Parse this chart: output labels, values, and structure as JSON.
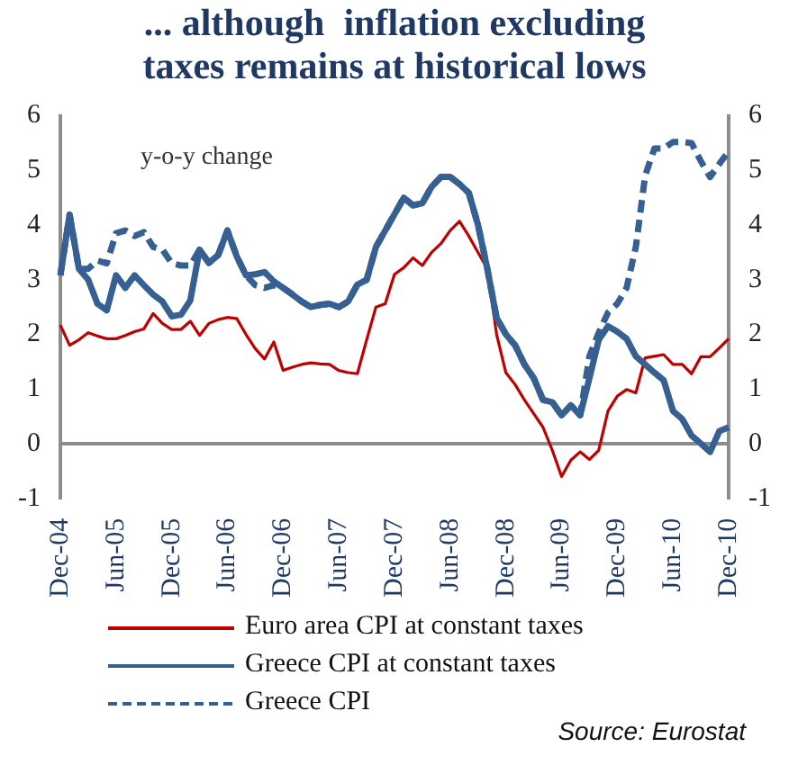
{
  "chart_data": {
    "type": "line",
    "title": "... although  inflation excluding\ntaxes remains at historical lows",
    "categories": [
      "Dec-04",
      null,
      null,
      null,
      null,
      null,
      "Jun-05",
      null,
      null,
      null,
      null,
      null,
      "Dec-05",
      null,
      null,
      null,
      null,
      null,
      "Jun-06",
      null,
      null,
      null,
      null,
      null,
      "Dec-06",
      null,
      null,
      null,
      null,
      null,
      "Jun-07",
      null,
      null,
      null,
      null,
      null,
      "Dec-07",
      null,
      null,
      null,
      null,
      null,
      "Jun-08",
      null,
      null,
      null,
      null,
      null,
      "Dec-08",
      null,
      null,
      null,
      null,
      null,
      "Jun-09",
      null,
      null,
      null,
      null,
      null,
      "Dec-09",
      null,
      null,
      null,
      null,
      null,
      "Jun-10",
      null,
      null,
      null,
      null,
      null,
      "Dec-10"
    ],
    "series": [
      {
        "name": "Euro area CPI at constant taxes",
        "color": "#c00000",
        "line_style": "solid",
        "values": [
          2.17,
          1.8,
          1.9,
          2.03,
          1.97,
          1.92,
          1.92,
          1.98,
          2.05,
          2.1,
          2.38,
          2.2,
          2.09,
          2.09,
          2.24,
          1.98,
          2.2,
          2.27,
          2.31,
          2.29,
          2.0,
          1.74,
          1.55,
          1.86,
          1.34,
          1.4,
          1.45,
          1.48,
          1.46,
          1.45,
          1.34,
          1.3,
          1.28,
          1.9,
          2.5,
          2.56,
          3.1,
          3.22,
          3.4,
          3.26,
          3.5,
          3.66,
          3.9,
          4.07,
          3.8,
          3.5,
          3.2,
          2.0,
          1.3,
          1.08,
          0.8,
          0.55,
          0.3,
          -0.12,
          -0.6,
          -0.3,
          -0.15,
          -0.29,
          -0.12,
          0.6,
          0.87,
          0.99,
          0.93,
          1.57,
          1.6,
          1.63,
          1.45,
          1.45,
          1.28,
          1.59,
          1.59,
          1.75,
          1.92
        ]
      },
      {
        "name": "Greece CPI at constant taxes",
        "color": "#376092",
        "line_style": "solid",
        "values": [
          3.08,
          4.19,
          3.2,
          3.0,
          2.56,
          2.44,
          3.08,
          2.85,
          3.08,
          2.9,
          2.73,
          2.6,
          2.33,
          2.36,
          2.62,
          3.55,
          3.31,
          3.45,
          3.9,
          3.43,
          3.08,
          3.1,
          3.14,
          2.97,
          2.85,
          2.73,
          2.6,
          2.5,
          2.54,
          2.56,
          2.5,
          2.6,
          2.91,
          3.0,
          3.6,
          3.9,
          4.2,
          4.5,
          4.36,
          4.4,
          4.7,
          4.88,
          4.88,
          4.75,
          4.59,
          4.0,
          3.2,
          2.3,
          2.0,
          1.8,
          1.45,
          1.2,
          0.8,
          0.76,
          0.52,
          0.7,
          0.52,
          1.2,
          1.9,
          2.15,
          2.05,
          1.92,
          1.6,
          1.45,
          1.3,
          1.16,
          0.6,
          0.45,
          0.15,
          0.0,
          -0.15,
          0.23,
          0.3
        ]
      },
      {
        "name": "Greece CPI",
        "color": "#376092",
        "line_style": "dashed",
        "values": [
          3.08,
          4.19,
          3.2,
          3.2,
          3.35,
          3.3,
          3.85,
          3.9,
          3.8,
          3.87,
          3.6,
          3.55,
          3.3,
          3.26,
          3.26,
          3.55,
          3.31,
          3.45,
          3.9,
          3.43,
          3.08,
          2.9,
          2.85,
          2.9,
          2.85,
          2.73,
          2.6,
          2.5,
          2.54,
          2.56,
          2.5,
          2.6,
          2.91,
          3.0,
          3.6,
          3.9,
          4.2,
          4.5,
          4.36,
          4.4,
          4.7,
          4.88,
          4.88,
          4.75,
          4.59,
          4.0,
          3.2,
          2.3,
          2.0,
          1.8,
          1.45,
          1.2,
          0.8,
          0.76,
          0.52,
          0.7,
          0.52,
          1.6,
          2.03,
          2.4,
          2.56,
          2.85,
          3.6,
          4.9,
          5.4,
          5.4,
          5.52,
          5.52,
          5.5,
          5.17,
          4.88,
          5.12,
          5.35
        ]
      }
    ],
    "ylim": [
      -1,
      6
    ],
    "yticks": [
      -1,
      0,
      1,
      2,
      3,
      4,
      5,
      6
    ],
    "y2lim": [
      -1,
      6
    ],
    "y2ticks": [
      -1,
      0,
      1,
      2,
      3,
      4,
      5,
      6
    ],
    "ref_lines": [
      {
        "axis": "y",
        "value": 0,
        "color": "#8c8c8c"
      }
    ],
    "grid": false,
    "legend": "bottom",
    "marker": "none",
    "annotations": [
      "y-o-y change",
      "Source: Eurostat"
    ]
  }
}
